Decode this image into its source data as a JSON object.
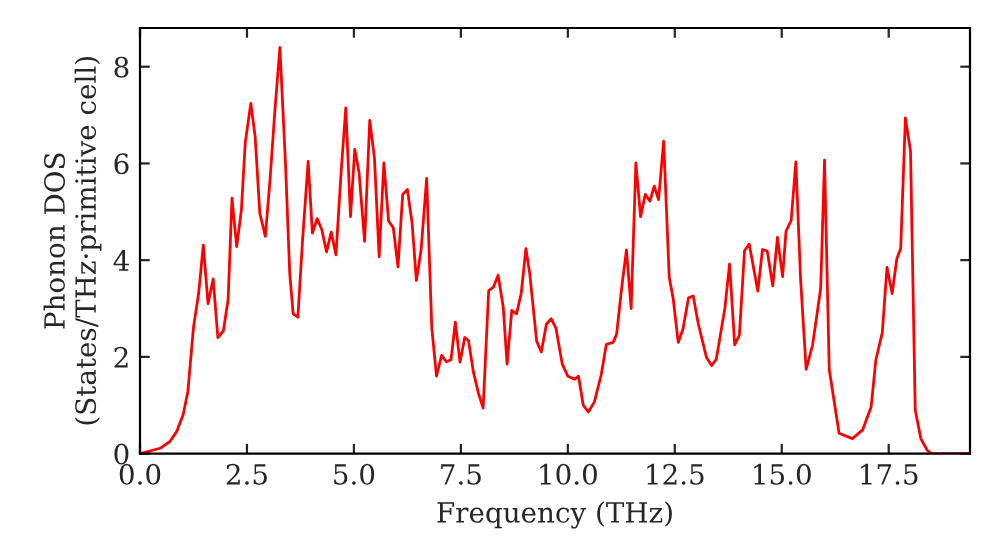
{
  "chart_data": {
    "type": "line",
    "xlabel": "Frequency (THz)",
    "ylabel": "Phonon DOS\n(States/THz·primitive cell)",
    "xlim": [
      0,
      19.4
    ],
    "ylim": [
      0,
      8.8
    ],
    "xticks": [
      {
        "value": 0,
        "label": "0.0"
      },
      {
        "value": 2.5,
        "label": "2.5"
      },
      {
        "value": 5,
        "label": "5.0"
      },
      {
        "value": 7.5,
        "label": "7.5"
      },
      {
        "value": 10,
        "label": "10.0"
      },
      {
        "value": 12.5,
        "label": "12.5"
      },
      {
        "value": 15,
        "label": "15.0"
      },
      {
        "value": 17.5,
        "label": "17.5"
      }
    ],
    "yticks": [
      0,
      2,
      4,
      6,
      8
    ],
    "grid": false,
    "marker": "none",
    "line_style": "solid",
    "series": [
      {
        "color": "#ff0000",
        "x": [
          0,
          0.47,
          0.7,
          0.86,
          1.01,
          1.12,
          1.25,
          1.37,
          1.48,
          1.59,
          1.71,
          1.82,
          1.95,
          2.06,
          2.15,
          2.26,
          2.37,
          2.46,
          2.59,
          2.69,
          2.8,
          2.93,
          3.04,
          3.15,
          3.27,
          3.4,
          3.5,
          3.58,
          3.69,
          3.8,
          3.93,
          4.03,
          4.14,
          4.25,
          4.36,
          4.47,
          4.58,
          4.7,
          4.81,
          4.92,
          5.02,
          5.12,
          5.25,
          5.37,
          5.48,
          5.59,
          5.7,
          5.81,
          5.92,
          6.03,
          6.14,
          6.25,
          6.36,
          6.46,
          6.57,
          6.7,
          6.82,
          6.93,
          7.05,
          7.16,
          7.27,
          7.37,
          7.48,
          7.59,
          7.68,
          7.79,
          7.91,
          8.02,
          8.15,
          8.26,
          8.37,
          8.49,
          8.58,
          8.69,
          8.8,
          8.91,
          9.02,
          9.11,
          9.27,
          9.38,
          9.5,
          9.61,
          9.72,
          9.87,
          10.0,
          10.16,
          10.25,
          10.36,
          10.48,
          10.62,
          10.78,
          10.9,
          11.06,
          11.14,
          11.26,
          11.37,
          11.48,
          11.59,
          11.7,
          11.81,
          11.92,
          12.02,
          12.12,
          12.24,
          12.37,
          12.46,
          12.58,
          12.69,
          12.82,
          12.93,
          13.05,
          13.24,
          13.36,
          13.47,
          13.67,
          13.78,
          13.9,
          14.01,
          14.13,
          14.24,
          14.44,
          14.55,
          14.66,
          14.79,
          14.9,
          15.02,
          15.1,
          15.22,
          15.33,
          15.44,
          15.57,
          15.72,
          15.91,
          16.0,
          16.11,
          16.22,
          16.34,
          16.65,
          16.89,
          17.09,
          17.2,
          17.35,
          17.46,
          17.58,
          17.69,
          17.78,
          17.89,
          18.01,
          18.12,
          18.25,
          18.4,
          18.5,
          19.35
        ],
        "values": [
          0,
          0.11,
          0.25,
          0.46,
          0.81,
          1.29,
          2.61,
          3.31,
          4.31,
          3.1,
          3.61,
          2.4,
          2.54,
          3.19,
          5.28,
          4.28,
          5.04,
          6.43,
          7.24,
          6.57,
          4.97,
          4.49,
          5.67,
          7.06,
          8.4,
          6.01,
          3.72,
          2.89,
          2.82,
          4.42,
          6.04,
          4.56,
          4.86,
          4.63,
          4.17,
          4.58,
          4.11,
          5.81,
          7.15,
          4.9,
          6.29,
          5.81,
          4.39,
          6.89,
          6.11,
          4.07,
          6.01,
          4.81,
          4.67,
          3.86,
          5.36,
          5.46,
          4.76,
          3.58,
          4.21,
          5.69,
          2.6,
          1.6,
          2.03,
          1.9,
          1.94,
          2.72,
          1.89,
          2.4,
          2.33,
          1.7,
          1.25,
          0.94,
          3.37,
          3.44,
          3.69,
          3.03,
          1.85,
          2.96,
          2.89,
          3.31,
          4.24,
          3.72,
          2.33,
          2.1,
          2.68,
          2.79,
          2.6,
          1.85,
          1.6,
          1.54,
          1.6,
          1.0,
          0.86,
          1.07,
          1.63,
          2.26,
          2.3,
          2.47,
          3.44,
          4.21,
          3.0,
          6.01,
          4.9,
          5.36,
          5.22,
          5.53,
          5.25,
          6.46,
          3.64,
          3.22,
          2.3,
          2.57,
          3.22,
          3.26,
          2.68,
          1.99,
          1.82,
          1.95,
          3.0,
          3.92,
          2.25,
          2.45,
          4.2,
          4.33,
          3.36,
          4.22,
          4.19,
          3.47,
          4.47,
          3.66,
          4.6,
          4.82,
          6.03,
          3.61,
          1.74,
          2.24,
          3.42,
          6.07,
          1.74,
          1.11,
          0.42,
          0.31,
          0.49,
          0.97,
          1.94,
          2.5,
          3.85,
          3.31,
          4.03,
          4.24,
          6.94,
          6.25,
          0.9,
          0.31,
          0.07,
          0,
          0
        ]
      }
    ]
  }
}
